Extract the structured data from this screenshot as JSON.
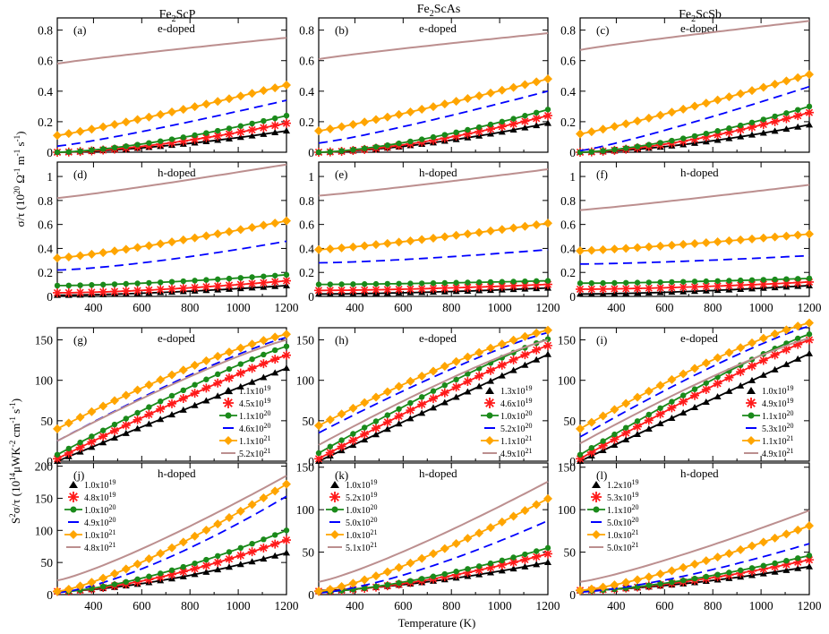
{
  "columns": [
    {
      "title": "Fe",
      "sub": "2",
      "rest": "ScP"
    },
    {
      "title": "Fe",
      "sub": "2",
      "rest": "ScAs"
    },
    {
      "title": "Fe",
      "sub": "2",
      "rest": "ScSb"
    }
  ],
  "axes": {
    "sigma_ylabel": {
      "main": "σ/τ (10",
      "exp1": "20",
      "mid": " Ω",
      "exp2": "-1",
      "mid2": " m",
      "exp3": "-1",
      "mid3": " s",
      "exp4": "-1",
      "end": ")"
    },
    "pf_ylabel": {
      "pre": "S",
      "exp1": "2",
      "mid": "σ/τ (10",
      "exp2": "14",
      "mid2": "μWK",
      "exp3": "-2",
      "mid3": " cm",
      "exp4": "-1",
      "mid4": " s",
      "exp5": "-1",
      "end": ")"
    },
    "xlabel": "Temperature (K)",
    "xticks": [
      "400",
      "600",
      "800",
      "1000",
      "1200"
    ]
  },
  "colors": {
    "s1": "#000000",
    "s2": "#ff1a1a",
    "s3": "#1a8a1a",
    "s4": "#0000ff",
    "s5": "#ffa500",
    "s6": "#bc8f8f"
  },
  "series_markers": [
    "triangle",
    "star",
    "circle",
    "dash",
    "diamond",
    "line"
  ],
  "chart_data": [
    {
      "id": "a",
      "label": "(a)",
      "doping": "e-doped",
      "type": "line",
      "x": [
        250,
        1200
      ],
      "ylim": [
        0,
        0.88
      ],
      "yticks": [
        "0",
        "0.2",
        "0.4",
        "0.6",
        "0.8"
      ],
      "series": [
        {
          "name": "1.1x10^19",
          "values": [
            0.0,
            0.14
          ]
        },
        {
          "name": "4.5x10^19",
          "values": [
            0.0,
            0.19
          ]
        },
        {
          "name": "1.1x10^20",
          "values": [
            0.0,
            0.24
          ]
        },
        {
          "name": "4.6x10^20",
          "values": [
            0.04,
            0.34
          ]
        },
        {
          "name": "1.1x10^21",
          "values": [
            0.11,
            0.44
          ]
        },
        {
          "name": "5.2x10^21",
          "values": [
            0.58,
            0.75
          ]
        }
      ]
    },
    {
      "id": "b",
      "label": "(b)",
      "doping": "e-doped",
      "type": "line",
      "x": [
        250,
        1200
      ],
      "ylim": [
        0,
        0.88
      ],
      "yticks": [
        "0",
        "0.2",
        "0.4",
        "0.6",
        "0.8"
      ],
      "series": [
        {
          "name": "1.3x10^19",
          "values": [
            0.0,
            0.19
          ]
        },
        {
          "name": "4.6x10^19",
          "values": [
            0.0,
            0.24
          ]
        },
        {
          "name": "1.0x10^20",
          "values": [
            0.0,
            0.28
          ]
        },
        {
          "name": "5.2x10^20",
          "values": [
            0.06,
            0.4
          ]
        },
        {
          "name": "1.1x10^21",
          "values": [
            0.14,
            0.48
          ]
        },
        {
          "name": "4.9x10^21",
          "values": [
            0.61,
            0.78
          ]
        }
      ]
    },
    {
      "id": "c",
      "label": "(c)",
      "doping": "e-doped",
      "type": "line",
      "x": [
        250,
        1200
      ],
      "ylim": [
        0,
        0.88
      ],
      "yticks": [
        "0",
        "0.2",
        "0.4",
        "0.6",
        "0.8"
      ],
      "series": [
        {
          "name": "1.0x10^19",
          "values": [
            0.0,
            0.18
          ]
        },
        {
          "name": "4.9x10^19",
          "values": [
            0.0,
            0.26
          ]
        },
        {
          "name": "1.1x10^20",
          "values": [
            0.0,
            0.3
          ]
        },
        {
          "name": "5.3x10^20",
          "values": [
            0.01,
            0.43
          ]
        },
        {
          "name": "1.1x10^21",
          "values": [
            0.12,
            0.51
          ]
        },
        {
          "name": "4.9x10^21",
          "values": [
            0.67,
            0.86
          ]
        }
      ]
    },
    {
      "id": "d",
      "label": "(d)",
      "doping": "h-doped",
      "type": "line",
      "x": [
        250,
        1200
      ],
      "ylim": [
        0,
        1.12
      ],
      "yticks": [
        "0",
        "0.2",
        "0.4",
        "0.6",
        "0.8",
        "1"
      ],
      "series": [
        {
          "name": "1.0x10^19",
          "values": [
            0.01,
            0.09
          ]
        },
        {
          "name": "4.8x10^19",
          "values": [
            0.03,
            0.13
          ]
        },
        {
          "name": "1.0x10^20",
          "values": [
            0.09,
            0.18
          ]
        },
        {
          "name": "4.9x10^20",
          "values": [
            0.22,
            0.46
          ]
        },
        {
          "name": "1.0x10^21",
          "values": [
            0.32,
            0.63
          ]
        },
        {
          "name": "4.8x10^21",
          "values": [
            0.82,
            1.1
          ]
        }
      ]
    },
    {
      "id": "e",
      "label": "(e)",
      "doping": "h-doped",
      "type": "line",
      "x": [
        250,
        1200
      ],
      "ylim": [
        0,
        1.12
      ],
      "yticks": [
        "0",
        "0.2",
        "0.4",
        "0.6",
        "0.8",
        "1"
      ],
      "series": [
        {
          "name": "1.0x10^19",
          "values": [
            0.02,
            0.07
          ]
        },
        {
          "name": "5.2x10^19",
          "values": [
            0.05,
            0.1
          ]
        },
        {
          "name": "1.0x10^20",
          "values": [
            0.1,
            0.13
          ]
        },
        {
          "name": "5.0x10^20",
          "values": [
            0.28,
            0.39
          ]
        },
        {
          "name": "1.0x10^21",
          "values": [
            0.39,
            0.61
          ]
        },
        {
          "name": "5.1x10^21",
          "values": [
            0.84,
            1.06
          ]
        }
      ]
    },
    {
      "id": "f",
      "label": "(f)",
      "doping": "h-doped",
      "type": "line",
      "x": [
        250,
        1200
      ],
      "ylim": [
        0,
        1.12
      ],
      "yticks": [
        "0",
        "0.2",
        "0.4",
        "0.6",
        "0.8",
        "1"
      ],
      "series": [
        {
          "name": "1.2x10^19",
          "values": [
            0.02,
            0.09
          ]
        },
        {
          "name": "5.3x10^19",
          "values": [
            0.06,
            0.12
          ]
        },
        {
          "name": "1.1x10^20",
          "values": [
            0.11,
            0.15
          ]
        },
        {
          "name": "5.0x10^20",
          "values": [
            0.27,
            0.34
          ]
        },
        {
          "name": "1.0x10^21",
          "values": [
            0.38,
            0.52
          ]
        },
        {
          "name": "5.0x10^21",
          "values": [
            0.72,
            0.93
          ]
        }
      ]
    },
    {
      "id": "g",
      "label": "(g)",
      "doping": "e-doped",
      "type": "line",
      "x": [
        250,
        1200
      ],
      "ylim": [
        0,
        165
      ],
      "yticks": [
        "0",
        "50",
        "100",
        "150"
      ],
      "legend_position": "right",
      "series": [
        {
          "name": "1.1x10^19",
          "values": [
            0,
            115
          ]
        },
        {
          "name": "4.5x10^19",
          "values": [
            3,
            131
          ]
        },
        {
          "name": "1.1x10^20",
          "values": [
            8,
            142
          ]
        },
        {
          "name": "4.6x10^20",
          "values": [
            25,
            153
          ]
        },
        {
          "name": "1.1x10^21",
          "values": [
            40,
            157
          ]
        },
        {
          "name": "5.2x10^21",
          "values": [
            25,
            150
          ]
        }
      ]
    },
    {
      "id": "h",
      "label": "(h)",
      "doping": "e-doped",
      "type": "line",
      "x": [
        250,
        1200
      ],
      "ylim": [
        0,
        165
      ],
      "yticks": [
        "0",
        "50",
        "100",
        "150"
      ],
      "legend_position": "right",
      "series": [
        {
          "name": "1.3x10^19",
          "values": [
            0,
            132
          ]
        },
        {
          "name": "4.6x10^19",
          "values": [
            3,
            143
          ]
        },
        {
          "name": "1.0x10^20",
          "values": [
            10,
            151
          ]
        },
        {
          "name": "5.2x10^20",
          "values": [
            35,
            159
          ]
        },
        {
          "name": "1.1x10^21",
          "values": [
            44,
            162
          ]
        },
        {
          "name": "4.9x10^21",
          "values": [
            20,
            150
          ]
        }
      ]
    },
    {
      "id": "i",
      "label": "(i)",
      "doping": "e-doped",
      "type": "line",
      "x": [
        250,
        1200
      ],
      "ylim": [
        0,
        165
      ],
      "yticks": [
        "0",
        "50",
        "100",
        "150"
      ],
      "legend_position": "right",
      "series": [
        {
          "name": "1.0x10^19",
          "values": [
            0,
            133
          ]
        },
        {
          "name": "4.9x10^19",
          "values": [
            3,
            150
          ]
        },
        {
          "name": "1.1x10^20",
          "values": [
            8,
            157
          ]
        },
        {
          "name": "5.3x10^20",
          "values": [
            30,
            167
          ]
        },
        {
          "name": "1.1x10^21",
          "values": [
            40,
            171
          ]
        },
        {
          "name": "4.9x10^21",
          "values": [
            22,
            152
          ]
        }
      ]
    },
    {
      "id": "j",
      "label": "(j)",
      "doping": "h-doped",
      "type": "line",
      "x": [
        250,
        1200
      ],
      "ylim": [
        0,
        205
      ],
      "yticks": [
        "0",
        "50",
        "100",
        "150",
        "200"
      ],
      "legend_position": "top-left",
      "series": [
        {
          "name": "1.0x10^19",
          "values": [
            5,
            65
          ]
        },
        {
          "name": "4.8x10^19",
          "values": [
            5,
            85
          ]
        },
        {
          "name": "1.0x10^20",
          "values": [
            4,
            100
          ]
        },
        {
          "name": "4.9x10^20",
          "values": [
            3,
            153
          ]
        },
        {
          "name": "1.0x10^21",
          "values": [
            5,
            172
          ]
        },
        {
          "name": "4.8x10^21",
          "values": [
            22,
            185
          ]
        }
      ]
    },
    {
      "id": "k",
      "label": "(k)",
      "doping": "h-doped",
      "type": "line",
      "x": [
        250,
        1200
      ],
      "ylim": [
        0,
        155
      ],
      "yticks": [
        "0",
        "50",
        "100",
        "150"
      ],
      "legend_position": "top-left",
      "series": [
        {
          "name": "1.0x10^19",
          "values": [
            5,
            38
          ]
        },
        {
          "name": "5.2x10^19",
          "values": [
            4,
            48
          ]
        },
        {
          "name": "1.0x10^20",
          "values": [
            3,
            55
          ]
        },
        {
          "name": "5.0x10^20",
          "values": [
            2,
            87
          ]
        },
        {
          "name": "1.0x10^21",
          "values": [
            4,
            113
          ]
        },
        {
          "name": "5.1x10^21",
          "values": [
            15,
            133
          ]
        }
      ]
    },
    {
      "id": "l",
      "label": "(l)",
      "doping": "h-doped",
      "type": "line",
      "x": [
        250,
        1200
      ],
      "ylim": [
        0,
        155
      ],
      "yticks": [
        "0",
        "50",
        "100",
        "150"
      ],
      "legend_position": "top-left",
      "series": [
        {
          "name": "1.2x10^19",
          "values": [
            5,
            33
          ]
        },
        {
          "name": "5.3x10^19",
          "values": [
            5,
            41
          ]
        },
        {
          "name": "1.1x10^20",
          "values": [
            4,
            46
          ]
        },
        {
          "name": "5.0x10^20",
          "values": [
            3,
            60
          ]
        },
        {
          "name": "1.0x10^21",
          "values": [
            5,
            81
          ]
        },
        {
          "name": "5.0x10^21",
          "values": [
            15,
            99
          ]
        }
      ]
    }
  ]
}
